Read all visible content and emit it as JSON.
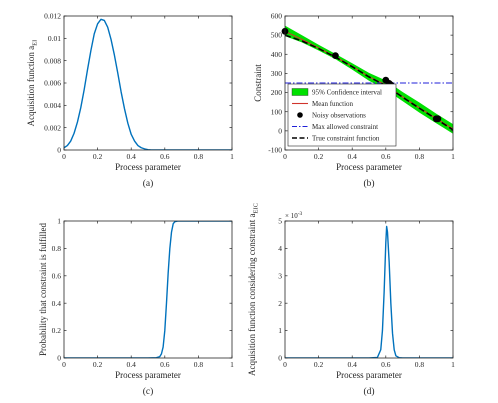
{
  "chart_data": [
    {
      "type": "line",
      "caption": "(a)",
      "xlabel": "Process parameter",
      "ylabel": "Acquisition function a",
      "ylabel_sub": "EI",
      "xlim": [
        0,
        1
      ],
      "ylim": [
        0,
        0.012
      ],
      "xticks": [
        "0",
        "0.2",
        "0.4",
        "0.6",
        "0.8",
        "1"
      ],
      "yticks": [
        "0",
        "0.002",
        "0.004",
        "0.006",
        "0.008",
        "0.01",
        "0.012"
      ],
      "series": [
        {
          "color": "#0072bd",
          "x": [
            0,
            0.02,
            0.04,
            0.06,
            0.08,
            0.1,
            0.12,
            0.14,
            0.16,
            0.18,
            0.2,
            0.22,
            0.24,
            0.26,
            0.28,
            0.3,
            0.32,
            0.34,
            0.36,
            0.38,
            0.4,
            0.42,
            0.44,
            0.46,
            0.48,
            0.5,
            0.52,
            0.55,
            0.6,
            0.7,
            0.8,
            0.9,
            1.0
          ],
          "y": [
            0.0002,
            0.0004,
            0.0008,
            0.0015,
            0.0025,
            0.0038,
            0.0054,
            0.0072,
            0.0089,
            0.0104,
            0.0113,
            0.0117,
            0.0116,
            0.011,
            0.0099,
            0.0085,
            0.0069,
            0.0052,
            0.0037,
            0.0024,
            0.0014,
            0.0008,
            0.0004,
            0.0002,
            0.0001,
            3e-05,
            1e-05,
            0,
            0,
            0,
            0,
            0,
            0
          ]
        }
      ]
    },
    {
      "type": "line",
      "caption": "(b)",
      "xlabel": "Process parameter",
      "ylabel": "Constraint",
      "xlim": [
        0,
        1
      ],
      "ylim": [
        -100,
        600
      ],
      "xticks": [
        "0",
        "0.2",
        "0.4",
        "0.6",
        "0.8",
        "1"
      ],
      "yticks": [
        "-100",
        "0",
        "100",
        "200",
        "300",
        "400",
        "500",
        "600"
      ],
      "x": [
        0,
        0.1,
        0.2,
        0.3,
        0.4,
        0.5,
        0.6,
        0.7,
        0.8,
        0.9,
        1.0
      ],
      "confidence_upper": [
        550,
        500,
        450,
        402,
        353,
        303,
        263,
        203,
        148,
        90,
        35
      ],
      "confidence_lower": [
        495,
        462,
        420,
        375,
        320,
        262,
        215,
        155,
        95,
        40,
        -15
      ],
      "mean": [
        520,
        478,
        433,
        387,
        337,
        283,
        240,
        178,
        120,
        65,
        10
      ],
      "true_constraint": [
        500,
        470,
        430,
        385,
        335,
        282,
        236,
        176,
        118,
        62,
        5
      ],
      "max_allowed_constraint": 250,
      "noisy_observations": {
        "x": [
          0.0,
          0.3,
          0.6,
          0.62,
          0.63,
          0.9,
          0.91
        ],
        "y": [
          520,
          393,
          265,
          248,
          240,
          63,
          63
        ]
      },
      "colors": {
        "confidence": "#00e000",
        "mean": "#d0342c",
        "observations": "#000000",
        "max_allowed": "#1f1fd8",
        "true": "#000000"
      },
      "legend": {
        "placement": "bottom-left",
        "entries": [
          "95% Confidence interval",
          "Mean function",
          "Noisy observations",
          "Max allowed constraint",
          "True constraint function"
        ]
      }
    },
    {
      "type": "line",
      "caption": "(c)",
      "xlabel": "Process parameter",
      "ylabel": "Probability that constraint is fulfilled",
      "xlim": [
        0,
        1
      ],
      "ylim": [
        0,
        1
      ],
      "xticks": [
        "0",
        "0.2",
        "0.4",
        "0.6",
        "0.8",
        "1"
      ],
      "yticks": [
        "0",
        "0.2",
        "0.4",
        "0.6",
        "0.8",
        "1"
      ],
      "series": [
        {
          "color": "#0072bd",
          "x": [
            0,
            0.5,
            0.55,
            0.57,
            0.58,
            0.59,
            0.6,
            0.61,
            0.62,
            0.63,
            0.64,
            0.65,
            0.66,
            0.68,
            0.7,
            0.8,
            0.9,
            1.0
          ],
          "y": [
            0,
            0,
            0.002,
            0.01,
            0.03,
            0.08,
            0.2,
            0.4,
            0.62,
            0.8,
            0.92,
            0.98,
            0.995,
            1,
            1,
            1,
            1,
            1
          ]
        }
      ]
    },
    {
      "type": "line",
      "caption": "(d)",
      "xlabel": "Process parameter",
      "ylabel": "Acquisition function considering constraint a",
      "ylabel_sub": "EIC",
      "y_exponent": "× 10",
      "y_exponent_power": "-3",
      "xlim": [
        0,
        1
      ],
      "ylim": [
        0,
        5
      ],
      "xticks": [
        "0",
        "0.2",
        "0.4",
        "0.6",
        "0.8",
        "1"
      ],
      "yticks": [
        "0",
        "1",
        "2",
        "3",
        "4",
        "5"
      ],
      "series": [
        {
          "color": "#0072bd",
          "x": [
            0,
            0.5,
            0.55,
            0.57,
            0.58,
            0.59,
            0.6,
            0.605,
            0.61,
            0.62,
            0.63,
            0.64,
            0.65,
            0.66,
            0.68,
            0.7,
            0.8,
            1.0
          ],
          "y": [
            0,
            0,
            0.02,
            0.3,
            1.0,
            2.4,
            4.2,
            4.8,
            4.6,
            3.5,
            2.0,
            0.9,
            0.3,
            0.08,
            0.01,
            0,
            0,
            0
          ]
        }
      ]
    }
  ]
}
